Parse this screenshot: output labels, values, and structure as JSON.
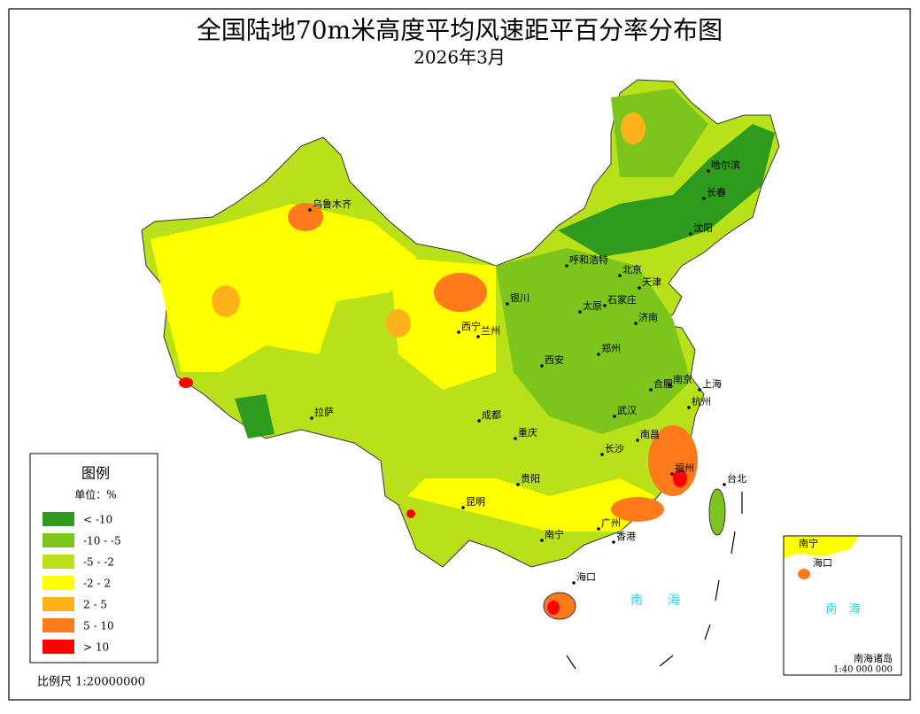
{
  "title": "全国陆地70m米高度平均风速距平百分率分布图",
  "subtitle": "2026年3月",
  "legend": {
    "title": "图例",
    "unit": "单位：%",
    "items": [
      {
        "label": "< -10",
        "color": "#2e9a1e"
      },
      {
        "label": "-10 - -5",
        "color": "#7cc51c"
      },
      {
        "label": "-5 - -2",
        "color": "#b9e11a"
      },
      {
        "label": "-2 - 2",
        "color": "#ffff00"
      },
      {
        "label": "2 - 5",
        "color": "#ffb21a"
      },
      {
        "label": "5 - 10",
        "color": "#ff7a1a"
      },
      {
        "label": "> 10",
        "color": "#ff0000"
      }
    ]
  },
  "cities": [
    "乌鲁木齐",
    "拉萨",
    "西宁",
    "兰州",
    "银川",
    "呼和浩特",
    "北京",
    "天津",
    "石家庄",
    "太原",
    "济南",
    "郑州",
    "西安",
    "成都",
    "重庆",
    "武汉",
    "合肥",
    "南京",
    "上海",
    "杭州",
    "南昌",
    "长沙",
    "福州",
    "台北",
    "贵阳",
    "昆明",
    "南宁",
    "广州",
    "香港",
    "海口",
    "哈尔滨",
    "长春",
    "沈阳"
  ],
  "sea_label": "南　　海",
  "scale": "比例尺 1:20000000",
  "inset": {
    "cities": [
      "南宁",
      "海口"
    ],
    "sea_label": "南　海",
    "title": "南海诸岛",
    "scale": "1:40 000 000"
  }
}
